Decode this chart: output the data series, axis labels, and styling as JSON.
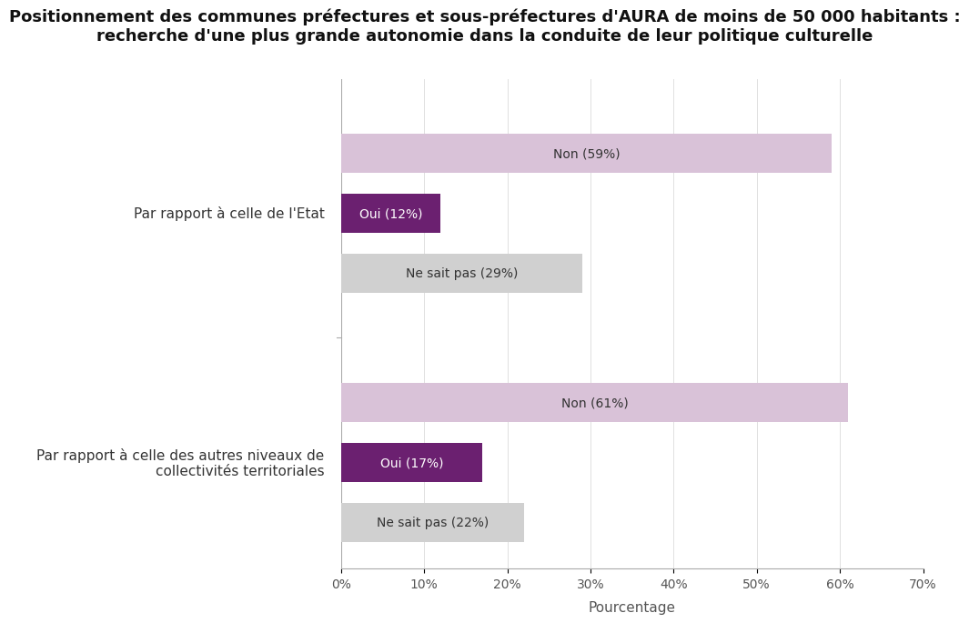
{
  "title_line1": "Positionnement des communes préfectures et sous-préfectures d'AURA de moins de 50 000 habitants :",
  "title_line2": "recherche d'une plus grande autonomie dans la conduite de leur politique culturelle",
  "groups": [
    {
      "label": "Par rapport à celle de l'Etat",
      "bars": [
        {
          "label": "Non (59%)",
          "value": 59,
          "color": "#d9c2d8",
          "text_color": "#333333"
        },
        {
          "label": "Oui (12%)",
          "value": 12,
          "color": "#6b2070",
          "text_color": "#ffffff"
        },
        {
          "label": "Ne sait pas (29%)",
          "value": 29,
          "color": "#d0d0d0",
          "text_color": "#333333"
        }
      ]
    },
    {
      "label": "Par rapport à celle des autres niveaux de\ncollectivités territoriales",
      "bars": [
        {
          "label": "Non (61%)",
          "value": 61,
          "color": "#d9c2d8",
          "text_color": "#333333"
        },
        {
          "label": "Oui (17%)",
          "value": 17,
          "color": "#6b2070",
          "text_color": "#ffffff"
        },
        {
          "label": "Ne sait pas (22%)",
          "value": 22,
          "color": "#d0d0d0",
          "text_color": "#333333"
        }
      ]
    }
  ],
  "xlabel": "Pourcentage",
  "xlim": [
    0,
    70
  ],
  "xticks": [
    0,
    10,
    20,
    30,
    40,
    50,
    60,
    70
  ],
  "xtick_labels": [
    "0%",
    "10%",
    "20%",
    "30%",
    "40%",
    "50%",
    "60%",
    "70%"
  ],
  "bar_height": 0.42,
  "label_fontsize": 11,
  "title_fontsize": 13,
  "xlabel_fontsize": 11,
  "tick_fontsize": 10,
  "bar_label_fontsize": 10,
  "background_color": "#ffffff",
  "fig_background_color": "#ffffff"
}
